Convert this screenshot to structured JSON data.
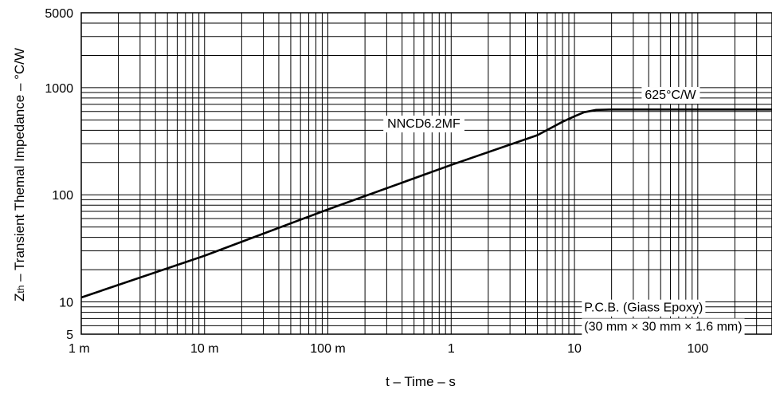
{
  "chart_data": {
    "type": "line",
    "x_scale": "log",
    "y_scale": "log",
    "xlim": [
      0.001,
      400
    ],
    "ylim": [
      5,
      5000
    ],
    "xlabel": "t – Time – s",
    "ylabel_main": "Z",
    "ylabel_sub": "th",
    "ylabel_rest": " – Transient Themal Impedance – °C/W",
    "x_ticks": [
      {
        "value": 0.001,
        "label": "1 m"
      },
      {
        "value": 0.01,
        "label": "10 m"
      },
      {
        "value": 0.1,
        "label": "100 m"
      },
      {
        "value": 1,
        "label": "1"
      },
      {
        "value": 10,
        "label": "10"
      },
      {
        "value": 100,
        "label": "100"
      }
    ],
    "y_ticks": [
      {
        "value": 5,
        "label": "5"
      },
      {
        "value": 10,
        "label": "10"
      },
      {
        "value": 100,
        "label": "100"
      },
      {
        "value": 1000,
        "label": "1000"
      },
      {
        "value": 5000,
        "label": "5000"
      }
    ],
    "grid": true,
    "series": [
      {
        "name": "NNCD6.2MF",
        "x": [
          0.001,
          0.01,
          0.1,
          1,
          5,
          8,
          10,
          12,
          15,
          20,
          50,
          100,
          400
        ],
        "y": [
          11,
          27,
          73,
          190,
          360,
          480,
          540,
          590,
          620,
          625,
          625,
          625,
          625
        ]
      }
    ],
    "annotations": [
      {
        "id": "series",
        "text": "NNCD6.2MF",
        "x": 0.6,
        "y": 470
      },
      {
        "id": "plateau",
        "text": "625°C/W",
        "x": 60,
        "y": 870
      },
      {
        "id": "pcb1",
        "text": "P.C.B. (Giass Epoxy)",
        "x": 12,
        "y": 9
      },
      {
        "id": "pcb2",
        "text": "(30 mm × 30 mm × 1.6 mm)",
        "x": 12,
        "y": 6
      }
    ]
  }
}
